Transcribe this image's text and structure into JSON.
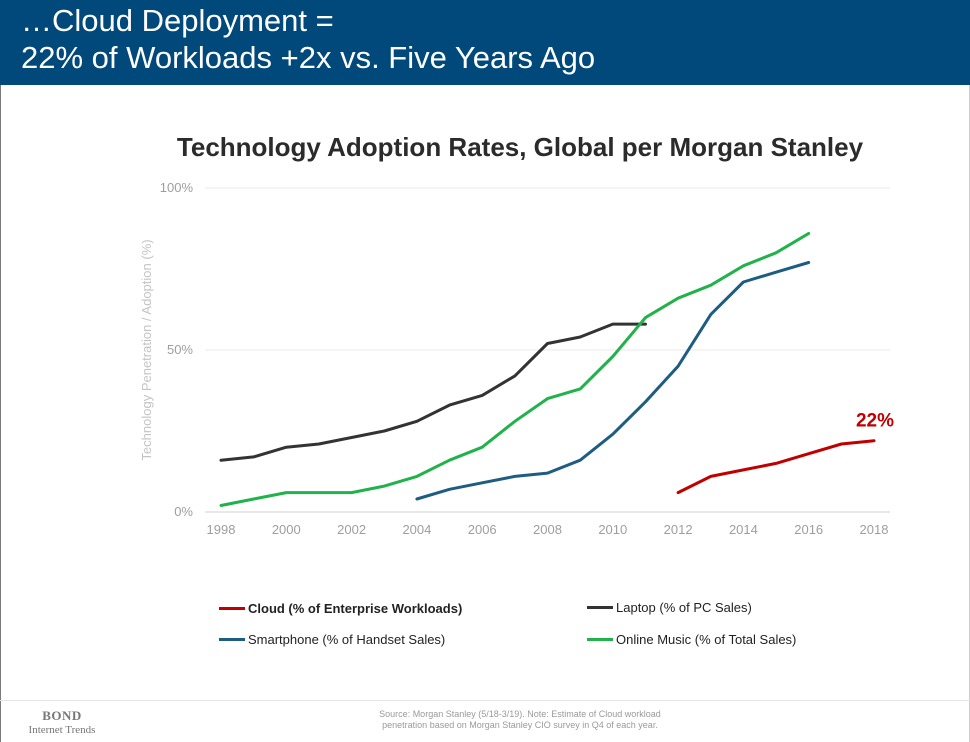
{
  "header": {
    "line1": "…Cloud Deployment =",
    "line2": "22% of Workloads +2x vs. Five Years Ago"
  },
  "chart_data": {
    "type": "line",
    "title": "Technology Adoption Rates, Global per Morgan Stanley",
    "ylabel": "Technology Penetration / Adoption (%)",
    "xlim": [
      1998,
      2018
    ],
    "ylim": [
      0,
      100
    ],
    "x_ticks": [
      "1998",
      "2000",
      "2002",
      "2004",
      "2006",
      "2008",
      "2010",
      "2012",
      "2014",
      "2016",
      "2018"
    ],
    "y_ticks": [
      "0%",
      "50%",
      "100%"
    ],
    "grid": "horizontal",
    "legend_position": "bottom",
    "series": [
      {
        "name": "Cloud (% of Enterprise Workloads)",
        "color": "#c00000",
        "points": [
          [
            2012,
            6
          ],
          [
            2013,
            11
          ],
          [
            2014,
            13
          ],
          [
            2015,
            15
          ],
          [
            2016,
            18
          ],
          [
            2017,
            21
          ],
          [
            2018,
            22
          ]
        ]
      },
      {
        "name": "Laptop (% of PC Sales)",
        "color": "#333333",
        "points": [
          [
            1998,
            16
          ],
          [
            1999,
            17
          ],
          [
            2000,
            20
          ],
          [
            2001,
            21
          ],
          [
            2002,
            23
          ],
          [
            2003,
            25
          ],
          [
            2004,
            28
          ],
          [
            2005,
            33
          ],
          [
            2006,
            36
          ],
          [
            2007,
            42
          ],
          [
            2008,
            52
          ],
          [
            2009,
            54
          ],
          [
            2010,
            58
          ],
          [
            2011,
            58
          ]
        ]
      },
      {
        "name": "Smartphone (% of Handset Sales)",
        "color": "#1f5c82",
        "points": [
          [
            2004,
            4
          ],
          [
            2005,
            7
          ],
          [
            2006,
            9
          ],
          [
            2007,
            11
          ],
          [
            2008,
            12
          ],
          [
            2009,
            16
          ],
          [
            2010,
            24
          ],
          [
            2011,
            34
          ],
          [
            2012,
            45
          ],
          [
            2013,
            61
          ],
          [
            2014,
            71
          ],
          [
            2015,
            74
          ],
          [
            2016,
            77
          ]
        ]
      },
      {
        "name": "Online Music (% of Total Sales)",
        "color": "#21b24b",
        "points": [
          [
            1998,
            2
          ],
          [
            1999,
            4
          ],
          [
            2000,
            6
          ],
          [
            2001,
            6
          ],
          [
            2002,
            6
          ],
          [
            2003,
            8
          ],
          [
            2004,
            11
          ],
          [
            2005,
            16
          ],
          [
            2006,
            20
          ],
          [
            2007,
            28
          ],
          [
            2008,
            35
          ],
          [
            2009,
            38
          ],
          [
            2010,
            48
          ],
          [
            2011,
            60
          ],
          [
            2012,
            66
          ],
          [
            2013,
            70
          ],
          [
            2014,
            76
          ],
          [
            2015,
            80
          ],
          [
            2016,
            86
          ]
        ]
      }
    ],
    "annotation": {
      "text": "22%",
      "x": 2018,
      "y": 22,
      "color": "#c00000"
    }
  },
  "footer": {
    "brand_line1": "BOND",
    "brand_line2": "Internet Trends",
    "source_line1": "Source: Morgan Stanley (5/18-3/19).  Note: Estimate of Cloud workload",
    "source_line2": "penetration based on Morgan Stanley CIO survey in Q4 of each year."
  }
}
